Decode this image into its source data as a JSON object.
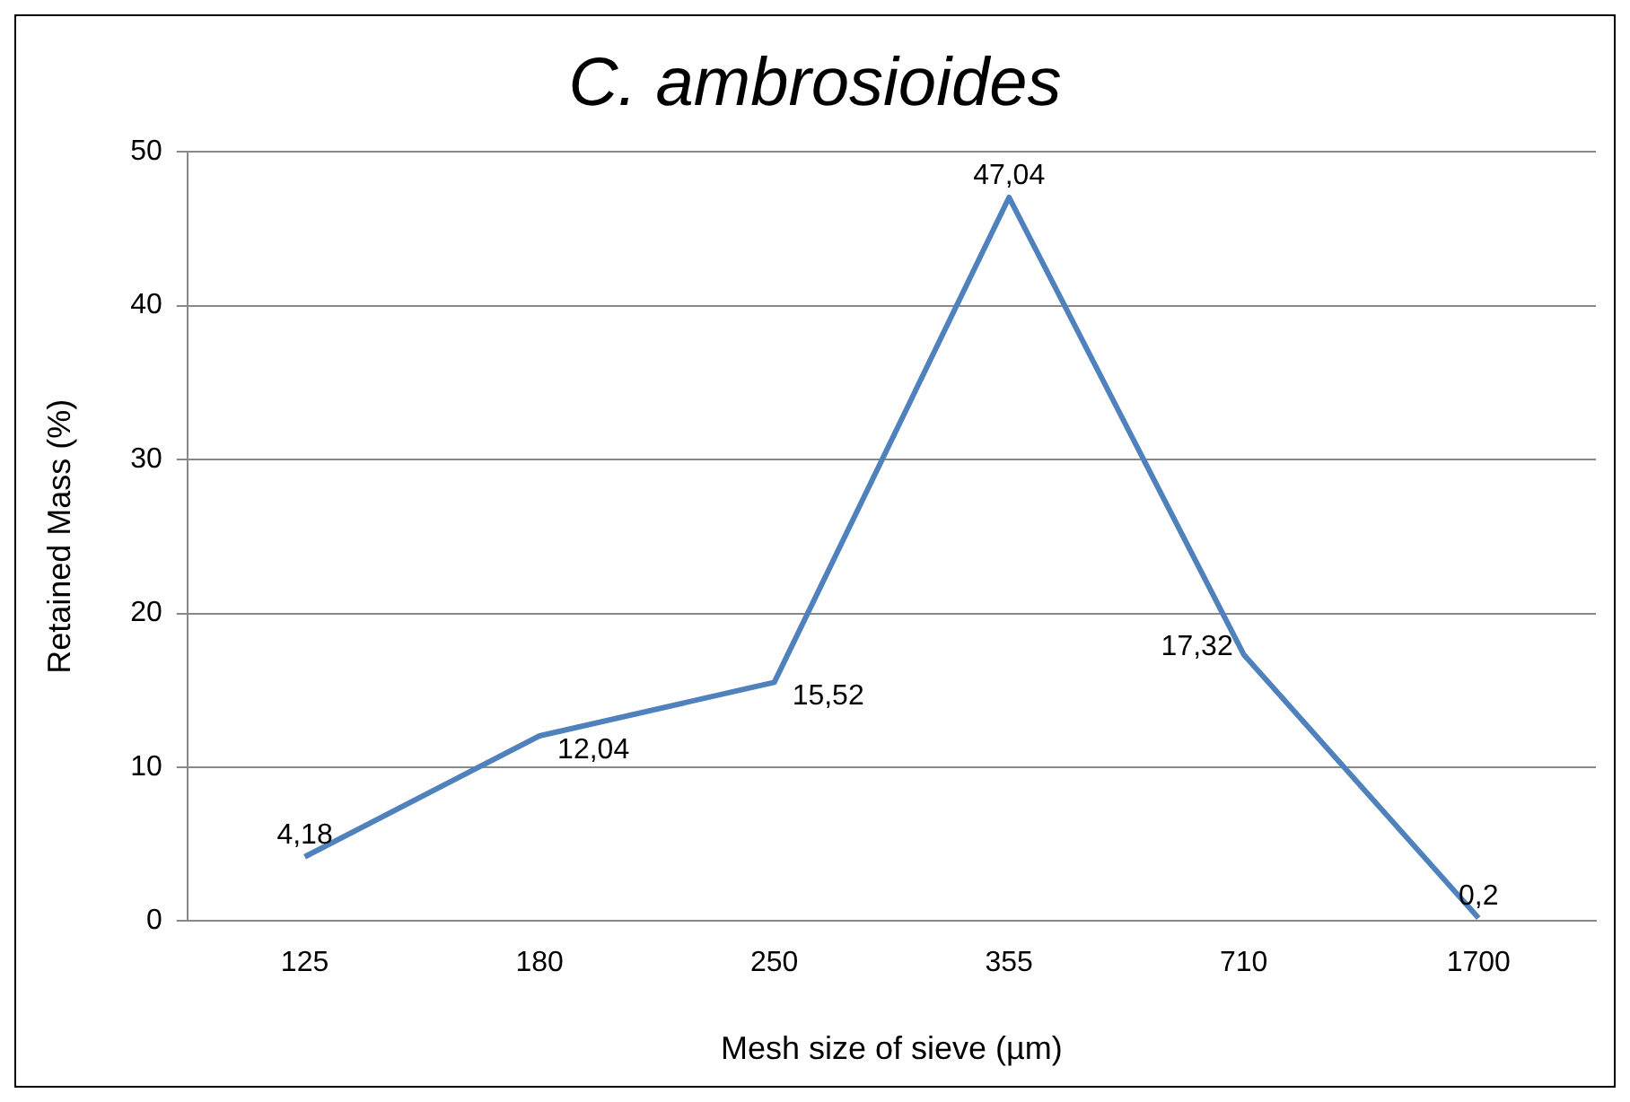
{
  "chart_data": {
    "type": "line",
    "title": "C. ambrosioides",
    "xlabel": "Mesh size of sieve (µm)",
    "ylabel": "Retained Mass (%)",
    "categories": [
      "125",
      "180",
      "250",
      "355",
      "710",
      "1700"
    ],
    "series": [
      {
        "color": "#4f81bd",
        "values": [
          4.18,
          12.04,
          15.52,
          47.04,
          17.32,
          0.2
        ],
        "value_labels": [
          "4,18",
          "12,04",
          "15,52",
          "47,04",
          "17,32",
          "0,2"
        ]
      }
    ],
    "ylim": [
      0,
      50
    ],
    "yticks": [
      0,
      10,
      20,
      30,
      40,
      50
    ],
    "grid": "y",
    "legend": false,
    "marker": "none",
    "line_style": "solid"
  }
}
